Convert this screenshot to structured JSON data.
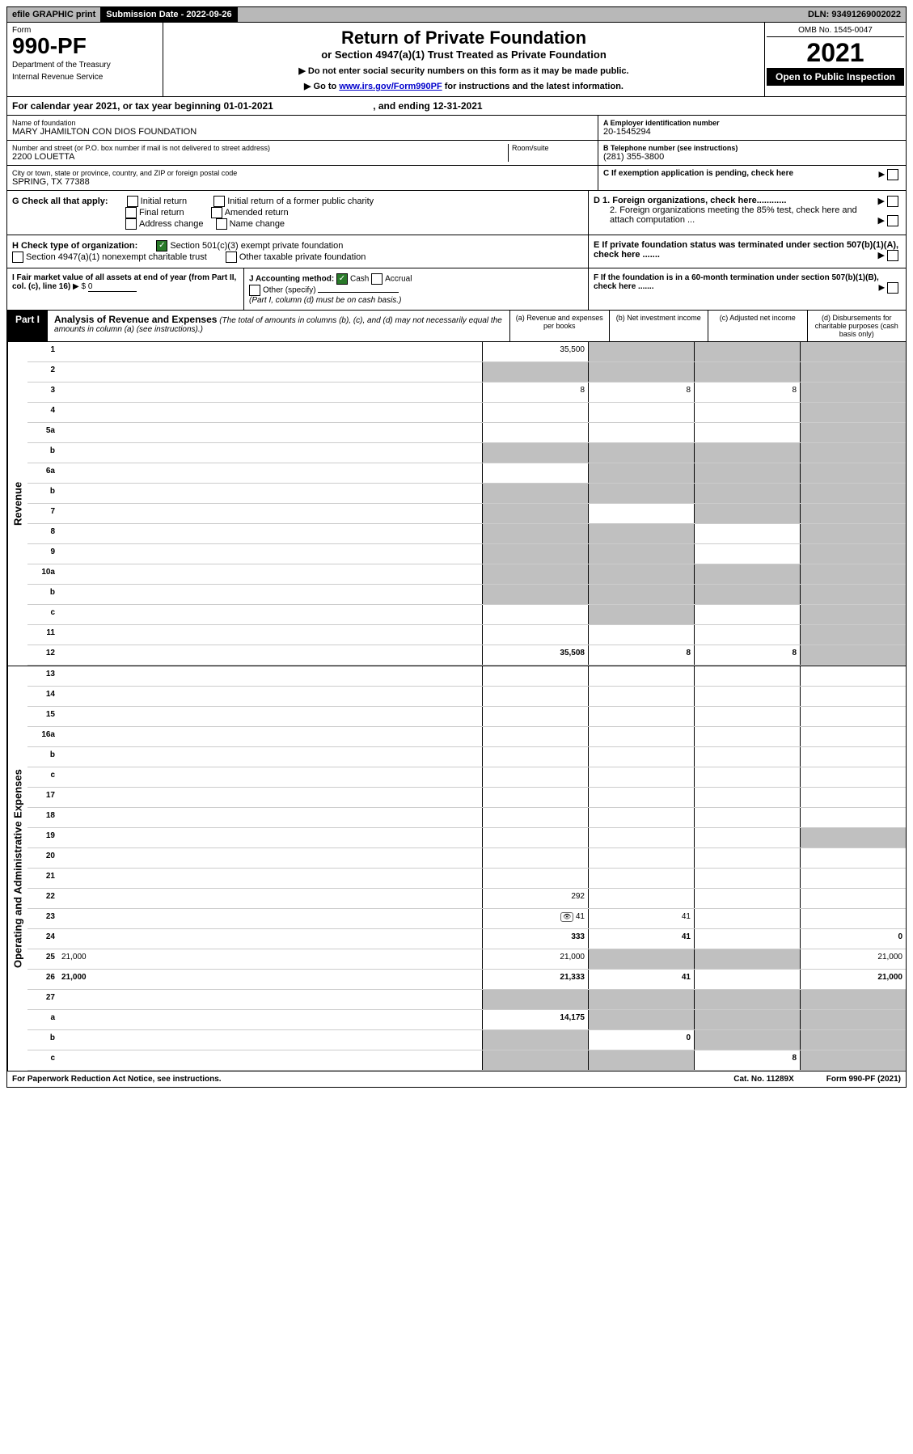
{
  "top_bar": {
    "efile": "efile GRAPHIC print",
    "submission_label": "Submission Date - 2022-09-26",
    "dln": "DLN: 93491269002022"
  },
  "header": {
    "form_label": "Form",
    "form_number": "990-PF",
    "dept1": "Department of the Treasury",
    "dept2": "Internal Revenue Service",
    "main_title": "Return of Private Foundation",
    "sub_title": "or Section 4947(a)(1) Trust Treated as Private Foundation",
    "instr1": "▶ Do not enter social security numbers on this form as it may be made public.",
    "instr2_pre": "▶ Go to ",
    "instr2_link": "www.irs.gov/Form990PF",
    "instr2_post": " for instructions and the latest information.",
    "omb": "OMB No. 1545-0047",
    "tax_year": "2021",
    "open_public": "Open to Public Inspection"
  },
  "cal_year": {
    "text_pre": "For calendar year 2021, or tax year beginning ",
    "begin": "01-01-2021",
    "text_mid": ", and ending ",
    "end": "12-31-2021"
  },
  "info": {
    "name_label": "Name of foundation",
    "name": "MARY JHAMILTON CON DIOS FOUNDATION",
    "ein_label": "A Employer identification number",
    "ein": "20-1545294",
    "addr_label": "Number and street (or P.O. box number if mail is not delivered to street address)",
    "addr": "2200 LOUETTA",
    "room_label": "Room/suite",
    "phone_label": "B Telephone number (see instructions)",
    "phone": "(281) 355-3800",
    "city_label": "City or town, state or province, country, and ZIP or foreign postal code",
    "city": "SPRING, TX  77388",
    "c_label": "C If exemption application is pending, check here"
  },
  "checks": {
    "g_label": "G Check all that apply:",
    "g1": "Initial return",
    "g2": "Initial return of a former public charity",
    "g3": "Final return",
    "g4": "Amended return",
    "g5": "Address change",
    "g6": "Name change",
    "h_label": "H Check type of organization:",
    "h1": "Section 501(c)(3) exempt private foundation",
    "h2": "Section 4947(a)(1) nonexempt charitable trust",
    "h3": "Other taxable private foundation",
    "d1": "D 1. Foreign organizations, check here............",
    "d2": "2. Foreign organizations meeting the 85% test, check here and attach computation ...",
    "e_label": "E If private foundation status was terminated under section 507(b)(1)(A), check here .......",
    "i_label": "I Fair market value of all assets at end of year (from Part II, col. (c), line 16)",
    "i_value": "0",
    "j_label": "J Accounting method:",
    "j1": "Cash",
    "j2": "Accrual",
    "j3": "Other (specify)",
    "j_note": "(Part I, column (d) must be on cash basis.)",
    "f_label": "F If the foundation is in a 60-month termination under section 507(b)(1)(B), check here ......."
  },
  "part1": {
    "label": "Part I",
    "title": "Analysis of Revenue and Expenses",
    "title_note": " (The total of amounts in columns (b), (c), and (d) may not necessarily equal the amounts in column (a) (see instructions).)",
    "col_a": "(a) Revenue and expenses per books",
    "col_b": "(b) Net investment income",
    "col_c": "(c) Adjusted net income",
    "col_d": "(d) Disbursements for charitable purposes (cash basis only)"
  },
  "side_labels": {
    "revenue": "Revenue",
    "expenses": "Operating and Administrative Expenses"
  },
  "rows": [
    {
      "n": "1",
      "d": "",
      "a": "35,500",
      "b": "",
      "c": "",
      "shade": [
        "b",
        "c",
        "d"
      ]
    },
    {
      "n": "2",
      "d": "",
      "a": "",
      "b": "",
      "c": "",
      "shade": [
        "a",
        "b",
        "c",
        "d"
      ]
    },
    {
      "n": "3",
      "d": "",
      "a": "8",
      "b": "8",
      "c": "8",
      "shade": [
        "d"
      ]
    },
    {
      "n": "4",
      "d": "",
      "a": "",
      "b": "",
      "c": "",
      "shade": [
        "d"
      ]
    },
    {
      "n": "5a",
      "d": "",
      "a": "",
      "b": "",
      "c": "",
      "shade": [
        "d"
      ]
    },
    {
      "n": "b",
      "d": "",
      "a": "",
      "b": "",
      "c": "",
      "shade": [
        "a",
        "b",
        "c",
        "d"
      ]
    },
    {
      "n": "6a",
      "d": "",
      "a": "",
      "b": "",
      "c": "",
      "shade": [
        "b",
        "c",
        "d"
      ]
    },
    {
      "n": "b",
      "d": "",
      "a": "",
      "b": "",
      "c": "",
      "shade": [
        "a",
        "b",
        "c",
        "d"
      ]
    },
    {
      "n": "7",
      "d": "",
      "a": "",
      "b": "",
      "c": "",
      "shade": [
        "a",
        "c",
        "d"
      ]
    },
    {
      "n": "8",
      "d": "",
      "a": "",
      "b": "",
      "c": "",
      "shade": [
        "a",
        "b",
        "d"
      ]
    },
    {
      "n": "9",
      "d": "",
      "a": "",
      "b": "",
      "c": "",
      "shade": [
        "a",
        "b",
        "d"
      ]
    },
    {
      "n": "10a",
      "d": "",
      "a": "",
      "b": "",
      "c": "",
      "shade": [
        "a",
        "b",
        "c",
        "d"
      ]
    },
    {
      "n": "b",
      "d": "",
      "a": "",
      "b": "",
      "c": "",
      "shade": [
        "a",
        "b",
        "c",
        "d"
      ]
    },
    {
      "n": "c",
      "d": "",
      "a": "",
      "b": "",
      "c": "",
      "shade": [
        "b",
        "d"
      ]
    },
    {
      "n": "11",
      "d": "",
      "a": "",
      "b": "",
      "c": "",
      "shade": [
        "d"
      ]
    },
    {
      "n": "12",
      "d": "",
      "a": "35,508",
      "b": "8",
      "c": "8",
      "shade": [
        "d"
      ],
      "bold": true
    }
  ],
  "exp_rows": [
    {
      "n": "13",
      "d": "",
      "a": "",
      "b": "",
      "c": ""
    },
    {
      "n": "14",
      "d": "",
      "a": "",
      "b": "",
      "c": ""
    },
    {
      "n": "15",
      "d": "",
      "a": "",
      "b": "",
      "c": ""
    },
    {
      "n": "16a",
      "d": "",
      "a": "",
      "b": "",
      "c": ""
    },
    {
      "n": "b",
      "d": "",
      "a": "",
      "b": "",
      "c": ""
    },
    {
      "n": "c",
      "d": "",
      "a": "",
      "b": "",
      "c": ""
    },
    {
      "n": "17",
      "d": "",
      "a": "",
      "b": "",
      "c": ""
    },
    {
      "n": "18",
      "d": "",
      "a": "",
      "b": "",
      "c": ""
    },
    {
      "n": "19",
      "d": "",
      "a": "",
      "b": "",
      "c": "",
      "shade": [
        "d"
      ]
    },
    {
      "n": "20",
      "d": "",
      "a": "",
      "b": "",
      "c": ""
    },
    {
      "n": "21",
      "d": "",
      "a": "",
      "b": "",
      "c": ""
    },
    {
      "n": "22",
      "d": "",
      "a": "292",
      "b": "",
      "c": ""
    },
    {
      "n": "23",
      "d": "",
      "a": "41",
      "b": "41",
      "c": "",
      "icon": true
    },
    {
      "n": "24",
      "d": "0",
      "a": "333",
      "b": "41",
      "c": "",
      "bold": true
    },
    {
      "n": "25",
      "d": "21,000",
      "a": "21,000",
      "b": "",
      "c": "",
      "shade": [
        "b",
        "c"
      ]
    },
    {
      "n": "26",
      "d": "21,000",
      "a": "21,333",
      "b": "41",
      "c": "",
      "bold": true
    },
    {
      "n": "27",
      "d": "",
      "a": "",
      "b": "",
      "c": "",
      "shade": [
        "a",
        "b",
        "c",
        "d"
      ]
    },
    {
      "n": "a",
      "d": "",
      "a": "14,175",
      "b": "",
      "c": "",
      "shade": [
        "b",
        "c",
        "d"
      ],
      "bold": true
    },
    {
      "n": "b",
      "d": "",
      "a": "",
      "b": "0",
      "c": "",
      "shade": [
        "a",
        "c",
        "d"
      ],
      "bold": true
    },
    {
      "n": "c",
      "d": "",
      "a": "",
      "b": "",
      "c": "8",
      "shade": [
        "a",
        "b",
        "d"
      ],
      "bold": true
    }
  ],
  "footer": {
    "left": "For Paperwork Reduction Act Notice, see instructions.",
    "center": "Cat. No. 11289X",
    "right": "Form 990-PF (2021)"
  }
}
